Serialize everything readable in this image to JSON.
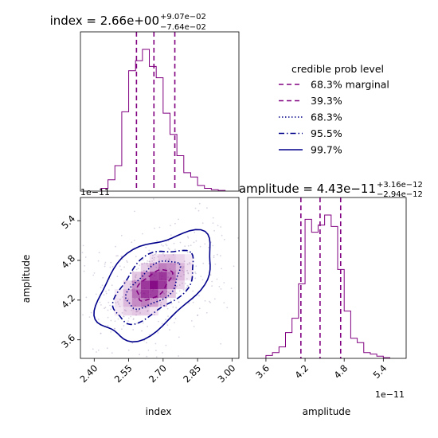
{
  "chart_data": [
    {
      "type": "histogram",
      "panel": "index marginal",
      "title_main": "index = 2.66e+00",
      "title_sup": "+9.07e−02",
      "title_sub": "−7.64e−02",
      "xlim": [
        2.34,
        3.03
      ],
      "bins_left": [
        2.43,
        2.46,
        2.49,
        2.52,
        2.55,
        2.58,
        2.61,
        2.64,
        2.67,
        2.7,
        2.73,
        2.76,
        2.79,
        2.82,
        2.85,
        2.88,
        2.91,
        2.94
      ],
      "bin_width": 0.03,
      "counts": [
        2,
        8,
        18,
        56,
        85,
        92,
        100,
        88,
        80,
        55,
        40,
        25,
        13,
        10,
        4,
        2,
        1,
        0.5
      ],
      "quantile_lines": [
        2.584,
        2.66,
        2.751
      ],
      "color": "#800080"
    },
    {
      "type": "contour",
      "panel": "amplitude vs index",
      "xlabel": "index",
      "ylabel": "amplitude",
      "xlim": [
        2.34,
        3.03
      ],
      "ylim": [
        3.32,
        5.75
      ],
      "xticks": [
        "2.40",
        "2.55",
        "2.70",
        "2.85",
        "3.00"
      ],
      "yticks": [
        "3.6",
        "4.2",
        "4.8",
        "5.4"
      ],
      "offset_text": "1e−11",
      "center": [
        2.66,
        4.43
      ],
      "density_color": "#800080",
      "contour_color": "#00008b",
      "levels": [
        {
          "label": "39.3%",
          "style": "dashed",
          "color": "#800080"
        },
        {
          "label": "68.3%",
          "style": "dotted",
          "color": "#00008b"
        },
        {
          "label": "95.5%",
          "style": "dashdot",
          "color": "#00008b"
        },
        {
          "label": "99.7%",
          "style": "solid",
          "color": "#00008b"
        }
      ]
    },
    {
      "type": "histogram",
      "panel": "amplitude marginal",
      "title_main": "amplitude = 4.43e−11",
      "title_sup": "+3.16e−12",
      "title_sub": "−2.94e−12",
      "xlim": [
        3.32,
        5.75
      ],
      "xticks": [
        "3.6",
        "4.2",
        "4.8",
        "5.4"
      ],
      "offset_text": "1e−11",
      "xlabel": "amplitude",
      "bins_left": [
        3.6,
        3.7,
        3.8,
        3.9,
        4.0,
        4.1,
        4.2,
        4.3,
        4.4,
        4.5,
        4.6,
        4.7,
        4.8,
        4.9,
        5.0,
        5.1,
        5.2,
        5.3,
        5.4
      ],
      "bin_width": 0.1,
      "counts": [
        2,
        4,
        8,
        18,
        28,
        52,
        97,
        88,
        93,
        100,
        92,
        62,
        33,
        14,
        11,
        4,
        3,
        1.5,
        0.5
      ],
      "quantile_lines": [
        4.136,
        4.43,
        4.746
      ],
      "color": "#800080"
    }
  ],
  "legend": {
    "title": "credible prob level",
    "entries": [
      {
        "label": "68.3% marginal",
        "style": "dashed",
        "color": "#800080"
      },
      {
        "label": "39.3%",
        "style": "dashed",
        "color": "#800080"
      },
      {
        "label": "68.3%",
        "style": "dotted",
        "color": "#00008b"
      },
      {
        "label": "95.5%",
        "style": "dashdot",
        "color": "#00008b"
      },
      {
        "label": "99.7%",
        "style": "solid",
        "color": "#00008b"
      }
    ]
  }
}
